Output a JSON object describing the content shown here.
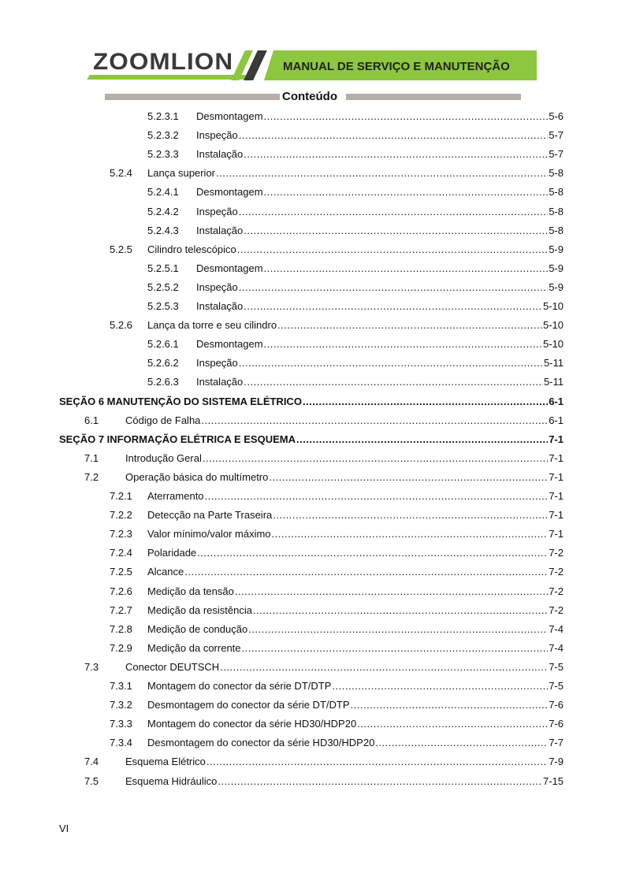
{
  "header": {
    "logo": "ZOOMLION",
    "banner": "MANUAL DE SERVIÇO E MANUTENÇÃO",
    "section_title": "Conteúdo",
    "brand_color": "#8dc63f"
  },
  "toc": [
    {
      "level": 3,
      "num": "5.2.3.1",
      "title": "Desmontagem",
      "page": "5-6"
    },
    {
      "level": 3,
      "num": "5.2.3.2",
      "title": "Inspeção",
      "page": "5-7"
    },
    {
      "level": 3,
      "num": "5.2.3.3",
      "title": "Instalação",
      "page": "5-7"
    },
    {
      "level": 2,
      "num": "5.2.4",
      "title": "Lança superior",
      "page": "5-8"
    },
    {
      "level": 3,
      "num": "5.2.4.1",
      "title": "Desmontagem",
      "page": "5-8"
    },
    {
      "level": 3,
      "num": "5.2.4.2",
      "title": "Inspeção",
      "page": "5-8"
    },
    {
      "level": 3,
      "num": "5.2.4.3",
      "title": "Instalação",
      "page": "5-8"
    },
    {
      "level": 2,
      "num": "5.2.5",
      "title": "Cilindro telescópico",
      "page": "5-9"
    },
    {
      "level": 3,
      "num": "5.2.5.1",
      "title": "Desmontagem",
      "page": "5-9"
    },
    {
      "level": 3,
      "num": "5.2.5.2",
      "title": "Inspeção",
      "page": "5-9"
    },
    {
      "level": 3,
      "num": "5.2.5.3",
      "title": "Instalação",
      "page": "5-10"
    },
    {
      "level": 2,
      "num": "5.2.6",
      "title": "Lança da torre e seu cilindro",
      "page": "5-10"
    },
    {
      "level": 3,
      "num": "5.2.6.1",
      "title": "Desmontagem",
      "page": "5-10"
    },
    {
      "level": 3,
      "num": "5.2.6.2",
      "title": "Inspeção",
      "page": "5-11"
    },
    {
      "level": 3,
      "num": "5.2.6.3",
      "title": "Instalação",
      "page": "5-11"
    },
    {
      "level": 0,
      "num": "",
      "title": "SEÇÃO 6 MANUTENÇÃO DO SISTEMA ELÉTRICO",
      "page": "6-1"
    },
    {
      "level": 1,
      "num": "6.1",
      "title": "Código de Falha",
      "page": "6-1"
    },
    {
      "level": 0,
      "num": "",
      "title": "SEÇÃO 7 INFORMAÇÃO ELÉTRICA E ESQUEMA",
      "page": "7-1"
    },
    {
      "level": 1,
      "num": "7.1",
      "title": "Introdução Geral",
      "page": "7-1"
    },
    {
      "level": 1,
      "num": "7.2",
      "title": "Operação básica do multímetro",
      "page": "7-1"
    },
    {
      "level": 2,
      "num": "7.2.1",
      "title": "Aterramento",
      "page": "7-1"
    },
    {
      "level": 2,
      "num": "7.2.2",
      "title": "Detecção na Parte Traseira",
      "page": "7-1"
    },
    {
      "level": 2,
      "num": "7.2.3",
      "title": "Valor mínimo/valor máximo",
      "page": "7-1"
    },
    {
      "level": 2,
      "num": "7.2.4",
      "title": "Polaridade",
      "page": "7-2"
    },
    {
      "level": 2,
      "num": "7.2.5",
      "title": "Alcance",
      "page": "7-2"
    },
    {
      "level": 2,
      "num": "7.2.6",
      "title": "Medição da tensão",
      "page": "7-2"
    },
    {
      "level": 2,
      "num": "7.2.7",
      "title": "Medição da resistência",
      "page": "7-2"
    },
    {
      "level": 2,
      "num": "7.2.8",
      "title": "Medição de condução",
      "page": "7-4"
    },
    {
      "level": 2,
      "num": "7.2.9",
      "title": "Medição da corrente",
      "page": "7-4"
    },
    {
      "level": 1,
      "num": "7.3",
      "title": "Conector DEUTSCH",
      "page": "7-5"
    },
    {
      "level": 2,
      "num": "7.3.1",
      "title": "Montagem do conector da série DT/DTP",
      "page": "7-5"
    },
    {
      "level": 2,
      "num": "7.3.2",
      "title": "Desmontagem do conector da série DT/DTP",
      "page": "7-6"
    },
    {
      "level": 2,
      "num": "7.3.3",
      "title": "Montagem do conector da série HD30/HDP20",
      "page": "7-6"
    },
    {
      "level": 2,
      "num": "7.3.4",
      "title": "Desmontagem do conector da série HD30/HDP20",
      "page": "7-7"
    },
    {
      "level": 1,
      "num": "7.4",
      "title": "Esquema Elétrico",
      "page": "7-9"
    },
    {
      "level": 1,
      "num": "7.5",
      "title": "Esquema Hidráulico",
      "page": "7-15"
    }
  ],
  "footer": {
    "page_number": "VI"
  }
}
